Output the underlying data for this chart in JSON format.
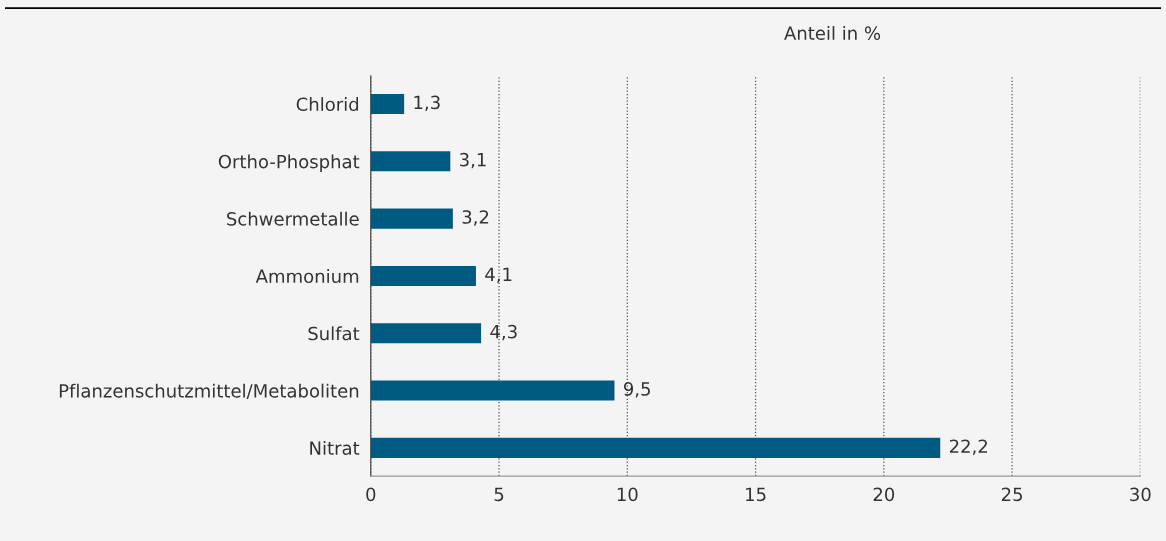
{
  "chart_data": {
    "type": "bar",
    "orientation": "horizontal",
    "xlabel": "Anteil in %",
    "categories": [
      "Chlorid",
      "Ortho-Phosphat",
      "Schwermetalle",
      "Ammonium",
      "Sulfat",
      "Pflanzenschutzmittel/Metaboliten",
      "Nitrat"
    ],
    "values": [
      1.3,
      3.1,
      3.2,
      4.1,
      4.3,
      9.5,
      22.2
    ],
    "value_labels": [
      "1,3",
      "3,1",
      "3,2",
      "4,1",
      "4,3",
      "9,5",
      "22,2"
    ],
    "color": "#005b82",
    "xlim": [
      0,
      30
    ],
    "xticks": [
      0,
      5,
      10,
      15,
      20,
      25,
      30
    ],
    "grid": "x",
    "line_style": "dotted"
  }
}
